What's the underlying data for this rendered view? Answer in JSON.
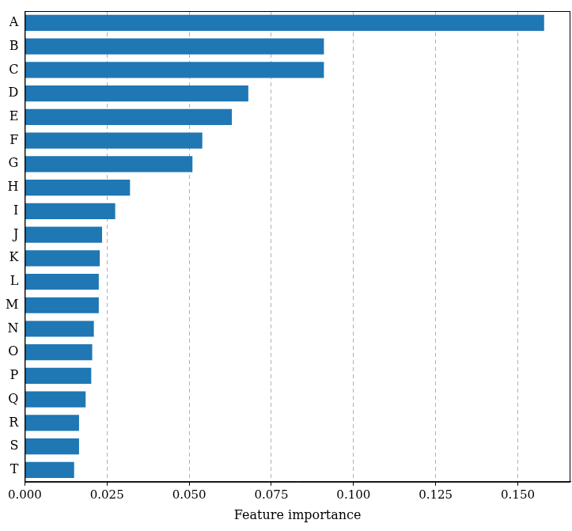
{
  "chart_data": {
    "type": "bar",
    "orientation": "horizontal",
    "x_label": "Feature importance",
    "categories": [
      "A",
      "B",
      "C",
      "D",
      "E",
      "F",
      "G",
      "H",
      "I",
      "J",
      "K",
      "L",
      "M",
      "N",
      "O",
      "P",
      "Q",
      "R",
      "S",
      "T"
    ],
    "values": [
      0.158,
      0.091,
      0.091,
      0.068,
      0.063,
      0.054,
      0.051,
      0.032,
      0.0275,
      0.0235,
      0.0228,
      0.0225,
      0.0225,
      0.021,
      0.0205,
      0.0202,
      0.0185,
      0.0165,
      0.0165,
      0.015
    ],
    "color": "#1f77b4",
    "xlim": [
      0,
      0.166
    ],
    "xticks": [
      {
        "value": 0,
        "label": "0.000"
      },
      {
        "value": 0.025,
        "label": "0.025"
      },
      {
        "value": 0.05,
        "label": "0.050"
      },
      {
        "value": 0.075,
        "label": "0.075"
      },
      {
        "value": 0.1,
        "label": "0.100"
      },
      {
        "value": 0.125,
        "label": "0.125"
      },
      {
        "value": 0.15,
        "label": "0.150"
      }
    ],
    "grid": true
  }
}
